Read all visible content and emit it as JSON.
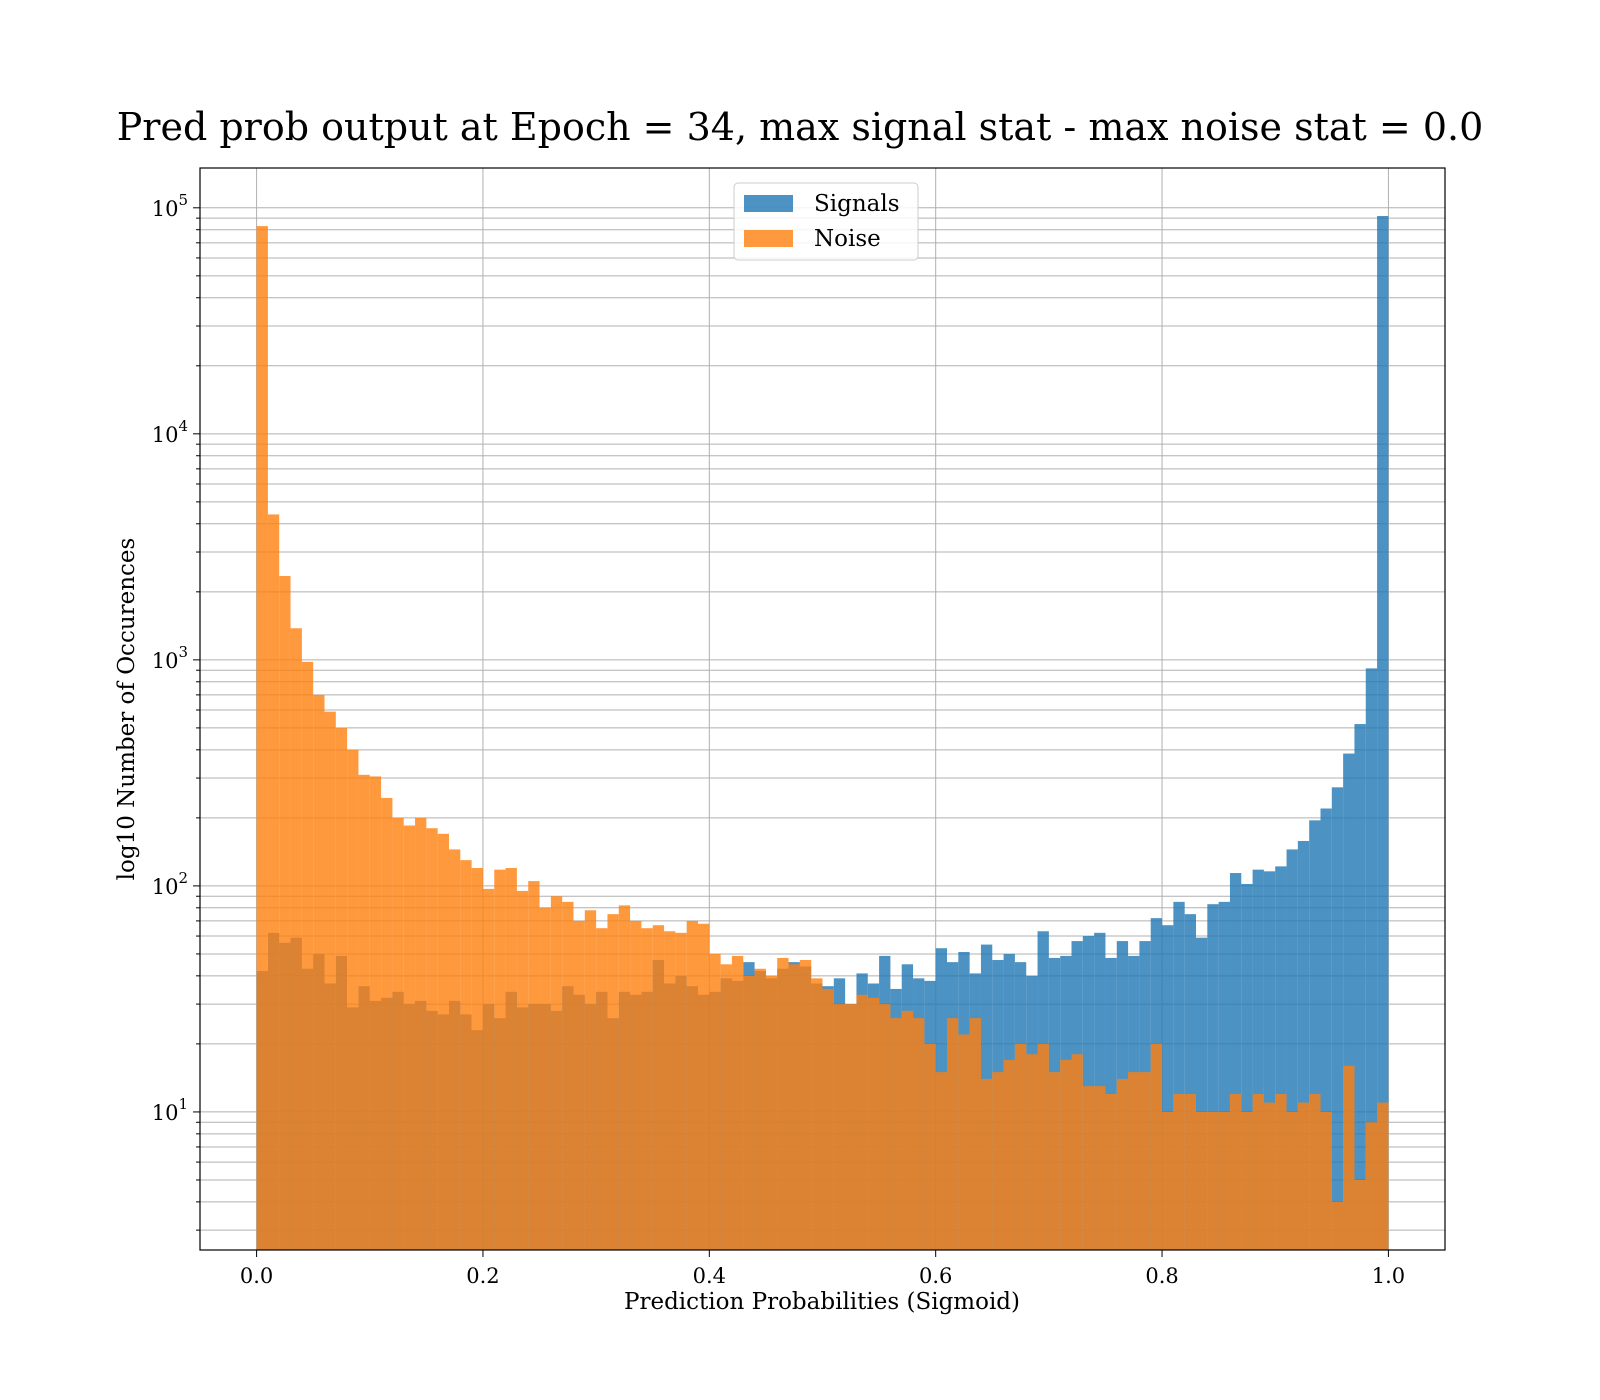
{
  "chart_data": {
    "type": "bar",
    "title": "Pred prob output at Epoch = 34, max signal stat - max noise stat = 0.0",
    "xlabel": "Prediction Probabilities (Sigmoid)",
    "ylabel": "log10 Number of Occurences",
    "xlim": [
      -0.05,
      1.05
    ],
    "ylim": [
      2.45,
      150000
    ],
    "yscale": "log",
    "x_ticks": [
      0.0,
      0.2,
      0.4,
      0.6,
      0.8,
      1.0
    ],
    "x_tick_labels": [
      "0.0",
      "0.2",
      "0.4",
      "0.6",
      "0.8",
      "1.0"
    ],
    "y_ticks": [
      10,
      100,
      1000,
      10000,
      100000
    ],
    "y_tick_bases": [
      "10",
      "10",
      "10",
      "10",
      "10"
    ],
    "y_tick_exponents": [
      "1",
      "2",
      "3",
      "4",
      "5"
    ],
    "grid": true,
    "legend_position": "top-center",
    "bin_edges_start": 0.0,
    "bin_width": 0.01,
    "series": [
      {
        "name": "Signals",
        "color": "#1f77b4",
        "opacity": 0.8,
        "values": [
          42,
          62,
          56,
          59,
          43,
          50,
          37,
          49,
          29,
          36,
          31,
          32,
          34,
          30,
          31,
          28,
          27,
          31,
          27,
          23,
          30,
          26,
          34,
          29,
          30,
          30,
          28,
          36,
          33,
          30,
          34,
          26,
          34,
          33,
          34,
          47,
          37,
          40,
          36,
          33,
          34,
          39,
          38,
          46,
          42,
          39,
          43,
          46,
          44,
          37,
          36,
          39,
          30,
          41,
          37,
          49,
          35,
          45,
          39,
          38,
          53,
          46,
          51,
          41,
          55,
          47,
          50,
          46,
          40,
          63,
          48,
          49,
          57,
          60,
          62,
          48,
          57,
          49,
          57,
          72,
          67,
          85,
          75,
          59,
          83,
          85,
          114,
          102,
          118,
          116,
          122,
          145,
          158,
          195,
          220,
          273,
          385,
          520,
          917,
          92000
        ]
      },
      {
        "name": "Noise",
        "color": "#ff7f0e",
        "opacity": 0.8,
        "values": [
          83000,
          4400,
          2350,
          1380,
          980,
          700,
          590,
          500,
          400,
          310,
          305,
          245,
          200,
          185,
          200,
          180,
          170,
          145,
          130,
          120,
          97,
          118,
          120,
          95,
          105,
          80,
          90,
          85,
          70,
          78,
          65,
          75,
          82,
          70,
          65,
          67,
          63,
          62,
          70,
          68,
          50,
          45,
          49,
          40,
          43,
          40,
          48,
          45,
          47,
          39,
          35,
          30,
          30,
          33,
          32,
          30,
          26,
          28,
          26,
          20,
          15,
          26,
          22,
          26,
          14,
          15,
          17,
          20,
          18,
          20,
          15,
          17,
          18,
          13,
          13,
          12,
          14,
          15,
          15,
          20,
          10,
          12,
          12,
          10,
          10,
          10,
          12,
          10,
          12,
          11,
          12,
          10,
          11,
          12,
          10,
          4,
          16,
          5,
          9,
          11
        ]
      }
    ]
  }
}
